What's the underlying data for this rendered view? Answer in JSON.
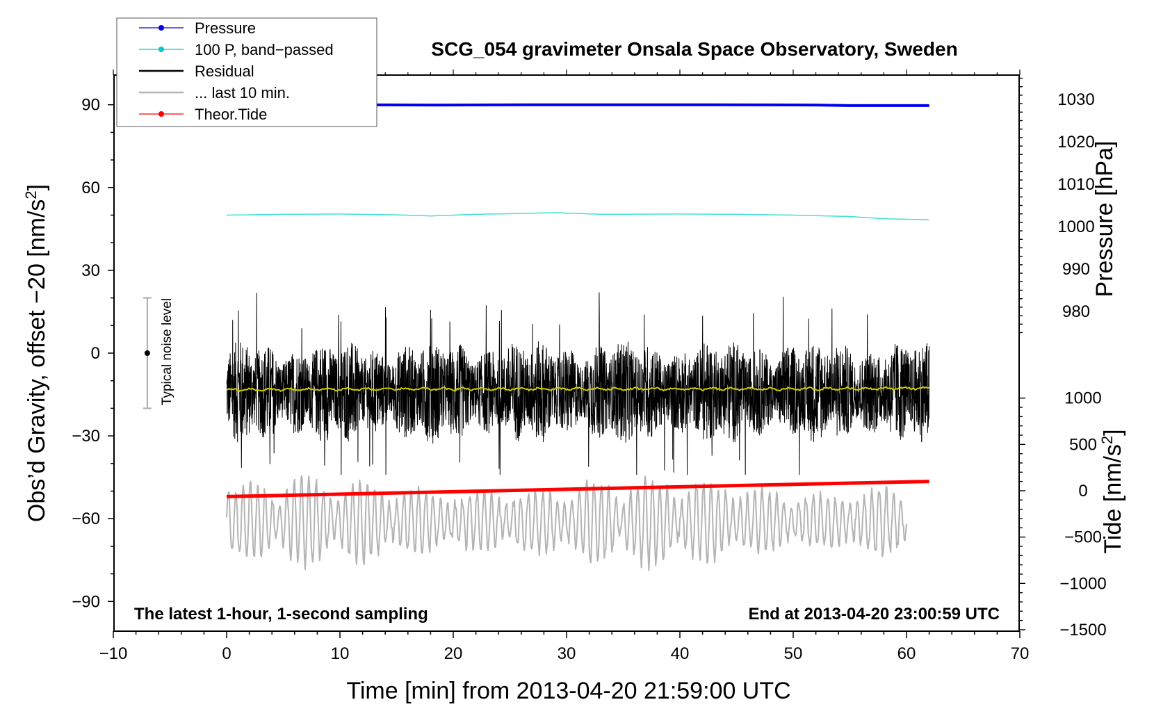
{
  "chart_data": {
    "type": "line",
    "title": "SCG_054 gravimeter Onsala Space Observatory, Sweden",
    "xlabel": "Time [min] from 2013-04-20 21:59:00 UTC",
    "ylabel_prefix": "Obs’d Gravity, offset −20 [nm/s",
    "ylabel_sup": "2",
    "ylabel_suffix": "]",
    "y2label": "Pressure [hPa]",
    "y3label_prefix": "Tide [nm/s",
    "y3label_sup": "2",
    "y3label_suffix": "]",
    "xlim": [
      -10,
      70
    ],
    "ylim": [
      -100,
      100
    ],
    "xticks": [
      -10,
      0,
      10,
      20,
      30,
      40,
      50,
      60,
      70
    ],
    "xtick_labels": [
      "−10",
      "0",
      "10",
      "20",
      "30",
      "40",
      "50",
      "60",
      "70"
    ],
    "yticks": [
      90,
      60,
      30,
      0,
      -30,
      -60,
      -90
    ],
    "ytick_labels": [
      "90",
      "60",
      "30",
      "0",
      "−30",
      "−60",
      "−90"
    ],
    "pressure_axis": {
      "ticks": [
        1030,
        1020,
        1010,
        1000,
        990,
        980
      ],
      "labels": [
        "1030",
        "1020",
        "1010",
        "1000",
        "990",
        "980"
      ]
    },
    "tide_axis": {
      "ticks": [
        1000,
        500,
        0,
        -500,
        -1000,
        -1500
      ],
      "labels": [
        "1000",
        "500",
        "0",
        "−500",
        "−1000",
        "−1500"
      ]
    },
    "legend": [
      {
        "label": "Pressure",
        "color": "#0000ee",
        "marker": true
      },
      {
        "label": "100 P, band−passed",
        "color": "#00cccc",
        "marker": true
      },
      {
        "label": "Residual",
        "color": "#000000",
        "marker": false
      },
      {
        "label": "... last 10 min.",
        "color": "#b4b4b4",
        "marker": false
      },
      {
        "label": "Theor.Tide",
        "color": "#ff0000",
        "marker": true
      }
    ],
    "legend_position": "top-left",
    "noise_bar": {
      "label": "Typical noise level",
      "x": -7,
      "center": 0,
      "low": -20,
      "high": 20
    },
    "left_note": "The latest 1-hour, 1-second sampling",
    "right_note": "End at 2013-04-20 23:00:59 UTC",
    "series": [
      {
        "name": "Pressure",
        "color": "#0000ee",
        "x": [
          0,
          10,
          18,
          30,
          40,
          52,
          55,
          62
        ],
        "y": [
          90,
          90,
          89.9,
          90,
          90,
          89.9,
          89.7,
          89.7
        ]
      },
      {
        "name": "100 P, band-passed",
        "color": "#40e0d0",
        "x": [
          0,
          5,
          10,
          15,
          18,
          22,
          26,
          29,
          33,
          40,
          45,
          50,
          55,
          58,
          62
        ],
        "y": [
          50,
          50.3,
          50.4,
          50.1,
          49.7,
          50.3,
          50.6,
          50.9,
          50.3,
          50.4,
          50.3,
          50,
          49.5,
          48.7,
          48.3
        ]
      },
      {
        "name": "Residual",
        "color": "#000000",
        "x_start": 0,
        "x_end": 62,
        "center": -14,
        "typical_amplitude": 13,
        "max": 25,
        "min": -44
      },
      {
        "name": "Residual smoothed",
        "color": "#cccc00",
        "x": [
          0,
          10,
          20,
          30,
          40,
          50,
          62
        ],
        "y": [
          -13.3,
          -13.1,
          -13,
          -13,
          -13,
          -13,
          -12.7
        ]
      },
      {
        "name": "... last 10 min.",
        "color": "#b4b4b4",
        "x_start": 0,
        "x_end": 60,
        "center": -61,
        "min": -84,
        "max": -39
      },
      {
        "name": "Theor.Tide",
        "color": "#ff0000",
        "x": [
          0,
          62
        ],
        "y": [
          -52,
          -46.5
        ]
      }
    ]
  }
}
